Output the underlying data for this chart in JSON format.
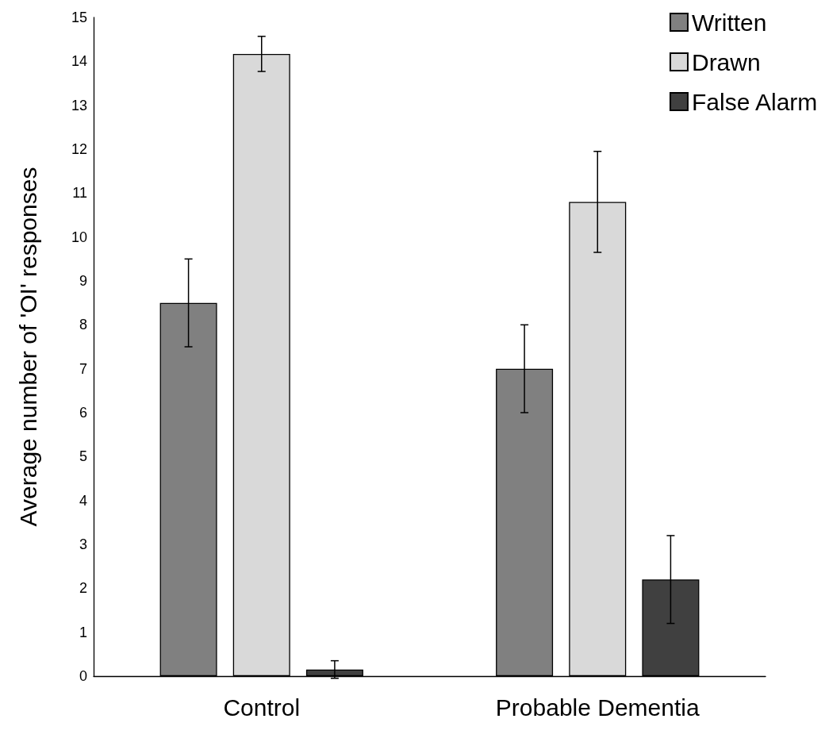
{
  "chart_data": {
    "type": "bar",
    "ylabel": "Average number of 'OI' responses",
    "categories": [
      "Control",
      "Probable Dementia"
    ],
    "series": [
      {
        "name": "Written",
        "color": "#808080",
        "values": [
          8.5,
          7.0
        ],
        "errors": [
          1.0,
          1.0
        ]
      },
      {
        "name": "Drawn",
        "color": "#d9d9d9",
        "values": [
          14.17,
          10.8
        ],
        "errors": [
          0.4,
          1.15
        ]
      },
      {
        "name": "False Alarm",
        "color": "#404040",
        "values": [
          0.15,
          2.2
        ],
        "errors": [
          0.2,
          1.0
        ]
      }
    ],
    "ylim": [
      0,
      15
    ],
    "yticks": [
      0,
      1,
      2,
      3,
      4,
      5,
      6,
      7,
      8,
      9,
      10,
      11,
      12,
      13,
      14,
      15
    ],
    "grid": false,
    "legend": "top right"
  }
}
